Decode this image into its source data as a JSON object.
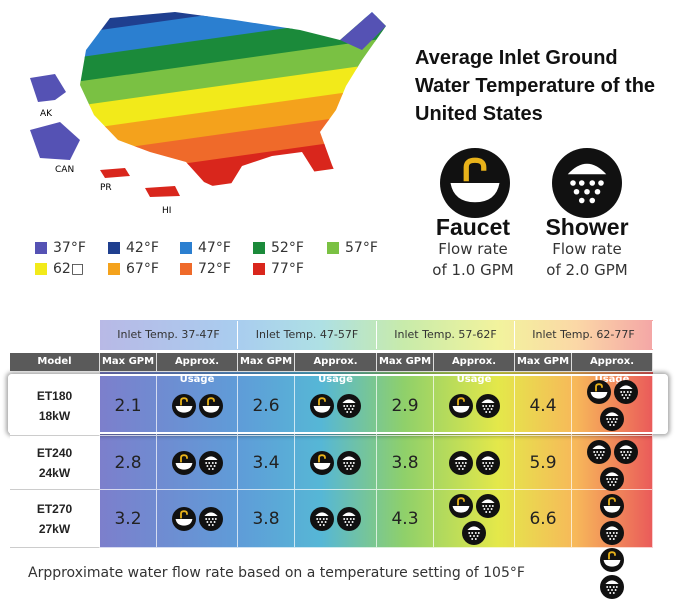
{
  "header": {
    "title": "Average Inlet Ground Water Temperature of the United States"
  },
  "map": {
    "labels": [
      "AK",
      "CAN",
      "PR",
      "HI"
    ],
    "legend": [
      {
        "label": "37°F",
        "color": "#5552b4"
      },
      {
        "label": "42°F",
        "color": "#1f3f8f"
      },
      {
        "label": "47°F",
        "color": "#2b7fd0"
      },
      {
        "label": "52°F",
        "color": "#1b8a3a"
      },
      {
        "label": "57°F",
        "color": "#7ac143"
      },
      {
        "label": "62□",
        "color": "#f2ea1a"
      },
      {
        "label": "67°F",
        "color": "#f4a21c"
      },
      {
        "label": "72°F",
        "color": "#ef6a2a"
      },
      {
        "label": "77°F",
        "color": "#d9261c"
      }
    ]
  },
  "icons": [
    {
      "label": "Faucet",
      "lines": [
        "Flow rate",
        "of 1.0 GPM"
      ]
    },
    {
      "label": "Shower",
      "lines": [
        "Flow rate",
        "of 2.0 GPM"
      ]
    }
  ],
  "table": {
    "groups": [
      "Inlet Temp. 37-47F",
      "Inlet Temp. 47-57F",
      "Inlet Temp. 57-62F",
      "Inlet Temp. 62-77F"
    ],
    "columns": [
      "Model",
      "Max GPM",
      "Approx. Usage"
    ],
    "rows": [
      {
        "model": "ET180",
        "power": "18kW",
        "max_gpm": [
          2.1,
          2.6,
          2.9,
          4.4
        ]
      },
      {
        "model": "ET240",
        "power": "24kW",
        "max_gpm": [
          2.8,
          3.4,
          3.8,
          5.9
        ]
      },
      {
        "model": "ET270",
        "power": "27kW",
        "max_gpm": [
          3.2,
          3.8,
          4.3,
          6.6
        ]
      }
    ]
  },
  "footer": "Arpproximate water flow rate based on a temperature setting of 105°F"
}
